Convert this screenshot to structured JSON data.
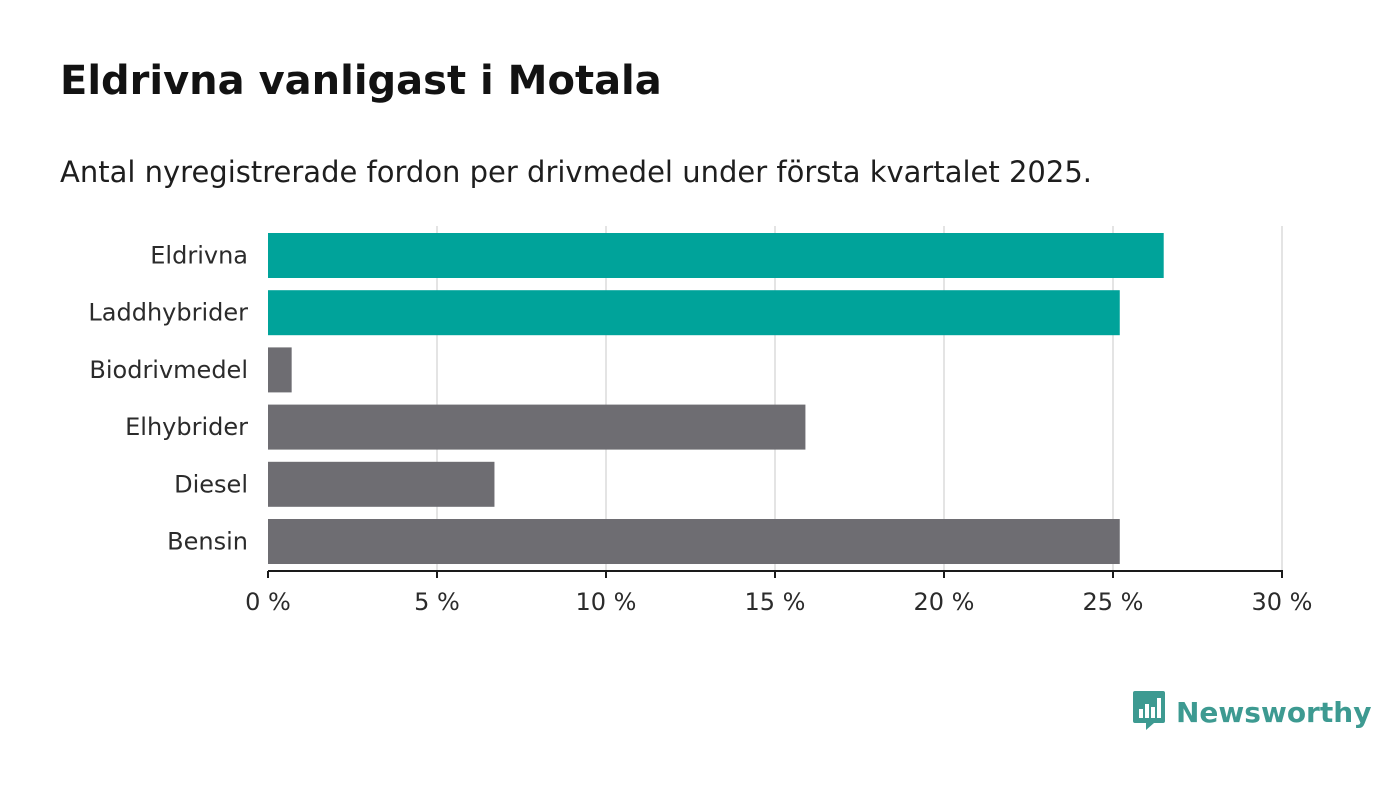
{
  "title": "Eldrivna vanligast i Motala",
  "subtitle": "Antal nyregistrerade fordon per drivmedel under första kvartalet 2025.",
  "brand": {
    "name": "Newsworthy",
    "icon": "bar-chart-speech-bubble-icon",
    "color": "#3d9a91"
  },
  "chart_data": {
    "type": "bar",
    "orientation": "horizontal",
    "categories": [
      "Eldrivna",
      "Laddhybrider",
      "Biodrivmedel",
      "Elhybrider",
      "Diesel",
      "Bensin"
    ],
    "values": [
      26.5,
      25.2,
      0.7,
      15.9,
      6.7,
      25.2
    ],
    "bar_colors": [
      "#00a39a",
      "#00a39a",
      "#6e6d72",
      "#6e6d72",
      "#6e6d72",
      "#6e6d72"
    ],
    "xlim": [
      0,
      30
    ],
    "xticks": [
      0,
      5,
      10,
      15,
      20,
      25,
      30
    ],
    "tick_labels": [
      "0 %",
      "5 %",
      "10 %",
      "15 %",
      "20 %",
      "25 %",
      "30 %"
    ],
    "grid": true,
    "xlabel": "",
    "ylabel": ""
  }
}
